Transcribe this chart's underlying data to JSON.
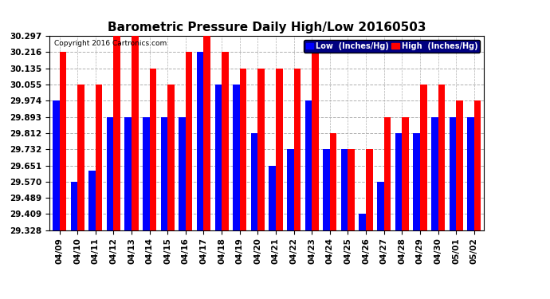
{
  "title": "Barometric Pressure Daily High/Low 20160503",
  "copyright": "Copyright 2016 Cartronics.com",
  "dates": [
    "04/09",
    "04/10",
    "04/11",
    "04/12",
    "04/13",
    "04/14",
    "04/15",
    "04/16",
    "04/17",
    "04/18",
    "04/19",
    "04/20",
    "04/21",
    "04/22",
    "04/23",
    "04/24",
    "04/25",
    "04/26",
    "04/27",
    "04/28",
    "04/29",
    "04/30",
    "05/01",
    "05/02"
  ],
  "low_values": [
    29.974,
    29.57,
    29.624,
    29.893,
    29.893,
    29.893,
    29.893,
    29.893,
    30.216,
    30.055,
    30.055,
    29.812,
    29.651,
    29.732,
    29.974,
    29.732,
    29.732,
    29.409,
    29.57,
    29.812,
    29.812,
    29.893,
    29.893,
    29.893
  ],
  "high_values": [
    30.216,
    30.055,
    30.055,
    30.297,
    30.297,
    30.135,
    30.055,
    30.216,
    30.378,
    30.216,
    30.135,
    30.135,
    30.135,
    30.135,
    30.216,
    29.812,
    29.732,
    29.732,
    29.893,
    29.893,
    30.055,
    30.055,
    29.974,
    29.974
  ],
  "ylim_low": 29.328,
  "ylim_high": 30.297,
  "yticks": [
    29.328,
    29.409,
    29.489,
    29.57,
    29.651,
    29.732,
    29.812,
    29.893,
    29.974,
    30.055,
    30.135,
    30.216,
    30.297
  ],
  "bar_color_low": "#0000ff",
  "bar_color_high": "#ff0000",
  "bg_color": "#ffffff",
  "plot_bg_color": "#ffffff",
  "grid_color": "#b0b0b0",
  "title_fontsize": 11,
  "tick_fontsize": 7.5,
  "legend_label_low": "Low  (Inches/Hg)",
  "legend_label_high": "High  (Inches/Hg)"
}
